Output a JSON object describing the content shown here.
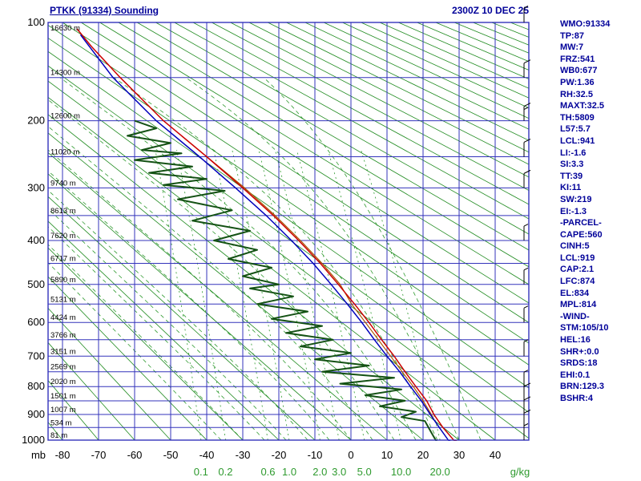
{
  "header": {
    "title": "PTKK (91334) Sounding",
    "datetime": "2300Z 10 DEC 25"
  },
  "stats": [
    "WMO:91334",
    "TP:87",
    "MW:7",
    "FRZ:541",
    "WB0:677",
    "PW:1.36",
    "RH:32.5",
    "MAXT:32.5",
    "TH:5809",
    "L57:5.7",
    "LCL:941",
    "LI:-1.6",
    "SI:3.3",
    "TT:39",
    "KI:11",
    "SW:219",
    "EI:-1.3",
    "-PARCEL-",
    "CAPE:560",
    "CINH:5",
    "LCL:919",
    "CAP:2.1",
    "LFC:874",
    "EL:834",
    "MPL:814",
    "-WIND-",
    "STM:105/10",
    "HEL:16",
    "SHR+:0.0",
    "SRDS:18",
    "EHI:0.1",
    "BRN:129.3",
    "BSHR:4"
  ],
  "axes": {
    "pressure_unit": "mb",
    "pressure_ticks": [
      100,
      200,
      300,
      400,
      500,
      600,
      700,
      800,
      900,
      1000
    ],
    "altitude_labels": [
      {
        "p": 100,
        "label": "16630 m"
      },
      {
        "p": 150,
        "label": "14300 m"
      },
      {
        "p": 200,
        "label": "12600 m"
      },
      {
        "p": 250,
        "label": "11020 m"
      },
      {
        "p": 300,
        "label": "9740 m"
      },
      {
        "p": 350,
        "label": "8613 m"
      },
      {
        "p": 400,
        "label": "7620 m"
      },
      {
        "p": 450,
        "label": "6717 m"
      },
      {
        "p": 500,
        "label": "5890 m"
      },
      {
        "p": 550,
        "label": "5131 m"
      },
      {
        "p": 600,
        "label": "4424 m"
      },
      {
        "p": 650,
        "label": "3766 m"
      },
      {
        "p": 700,
        "label": "3151 m"
      },
      {
        "p": 750,
        "label": "2569 m"
      },
      {
        "p": 800,
        "label": "2020 m"
      },
      {
        "p": 850,
        "label": "1501 m"
      },
      {
        "p": 900,
        "label": "1007 m"
      },
      {
        "p": 950,
        "label": "534 m"
      },
      {
        "p": 1000,
        "label": "81 m"
      }
    ],
    "temp_ticks": [
      -80,
      -70,
      -60,
      -50,
      -40,
      -30,
      -20,
      -10,
      0,
      10,
      20,
      30,
      40
    ],
    "mixing_unit": "g/kg",
    "mixing_labels": [
      {
        "label": "0.1",
        "t": -41.6
      },
      {
        "label": "0.2",
        "t": -34.8
      },
      {
        "label": "0.6",
        "t": -23.0
      },
      {
        "label": "1.0",
        "t": -17.1
      },
      {
        "label": "2.0",
        "t": -8.6
      },
      {
        "label": "3.0",
        "t": -3.3
      },
      {
        "label": "5.0",
        "t": 3.7
      },
      {
        "label": "10.0",
        "t": 13.9
      },
      {
        "label": "20.0",
        "t": 24.7
      }
    ]
  },
  "chart_data": {
    "type": "stuve-sounding",
    "title": "PTKK (91334) Sounding",
    "pressure_range": [
      100,
      1000
    ],
    "temp_range": [
      -80,
      40
    ],
    "grid": {
      "isobar_step": 50,
      "isotherm_step": 10,
      "dry_adiabats_theta": {
        "min": -80,
        "max": 340,
        "step": 10
      },
      "moist_adiabats_thetaw": [
        -36,
        -30,
        -24,
        -18,
        -12,
        -6,
        0,
        6,
        12,
        18,
        24,
        30,
        36
      ],
      "mixing_ratios": [
        0.1,
        0.2,
        0.6,
        1.0,
        2.0,
        3.0,
        5.0,
        10.0,
        20.0
      ]
    },
    "colors": {
      "grid_blue": "#3333bb",
      "adiabat_green": "#1e8a1e",
      "dashed_green": "#2e9a2e",
      "temperature_red": "#cc0000",
      "secondary_blue": "#0000bb",
      "dewpoint_darkgreen": "#145214",
      "parcel_brown": "#aa5500",
      "text_navy": "#000099",
      "axis_black": "#000000"
    },
    "series": [
      {
        "name": "temperature",
        "color": "#cc0000",
        "width": 1.5,
        "points": [
          [
            1009,
            30
          ],
          [
            1000,
            28.5
          ],
          [
            950,
            25.5
          ],
          [
            900,
            23
          ],
          [
            850,
            21
          ],
          [
            800,
            18
          ],
          [
            750,
            15
          ],
          [
            700,
            12
          ],
          [
            650,
            8.5
          ],
          [
            600,
            5
          ],
          [
            550,
            1
          ],
          [
            500,
            -3.5
          ],
          [
            450,
            -8.5
          ],
          [
            400,
            -14.5
          ],
          [
            350,
            -21.5
          ],
          [
            300,
            -30
          ],
          [
            250,
            -40
          ],
          [
            200,
            -52
          ],
          [
            150,
            -64
          ],
          [
            120,
            -72
          ],
          [
            105,
            -76
          ]
        ]
      },
      {
        "name": "secondary",
        "color": "#0000bb",
        "width": 1.5,
        "points": [
          [
            1009,
            28
          ],
          [
            1000,
            27
          ],
          [
            950,
            24.5
          ],
          [
            900,
            22
          ],
          [
            850,
            19.5
          ],
          [
            800,
            16.5
          ],
          [
            750,
            13.5
          ],
          [
            700,
            10
          ],
          [
            650,
            6.5
          ],
          [
            600,
            3
          ],
          [
            550,
            -1
          ],
          [
            500,
            -5.5
          ],
          [
            450,
            -10.5
          ],
          [
            400,
            -16.5
          ],
          [
            350,
            -23.5
          ],
          [
            300,
            -32
          ],
          [
            250,
            -42
          ],
          [
            200,
            -54
          ],
          [
            150,
            -66
          ],
          [
            110,
            -75
          ]
        ]
      },
      {
        "name": "parcel",
        "color": "#aa5500",
        "width": 1.2,
        "points": [
          [
            919,
            23
          ],
          [
            900,
            22.3
          ],
          [
            850,
            20
          ],
          [
            800,
            17.3
          ],
          [
            750,
            14.2
          ],
          [
            700,
            11
          ],
          [
            650,
            7.6
          ],
          [
            600,
            4
          ],
          [
            550,
            0.2
          ],
          [
            500,
            -3
          ],
          [
            450,
            -8
          ],
          [
            400,
            -14
          ],
          [
            350,
            -21
          ],
          [
            300,
            -29.5
          ],
          [
            250,
            -40
          ],
          [
            220,
            -47
          ]
        ]
      },
      {
        "name": "dewpoint",
        "color": "#145214",
        "width": 2,
        "points": [
          [
            1009,
            24
          ],
          [
            1000,
            23.5
          ],
          [
            975,
            22.5
          ],
          [
            950,
            21.5
          ],
          [
            925,
            20.5
          ],
          [
            910,
            14
          ],
          [
            890,
            18
          ],
          [
            870,
            8
          ],
          [
            850,
            15
          ],
          [
            830,
            4
          ],
          [
            810,
            14
          ],
          [
            790,
            -3
          ],
          [
            770,
            12
          ],
          [
            750,
            -8
          ],
          [
            730,
            5
          ],
          [
            710,
            -10
          ],
          [
            690,
            0
          ],
          [
            670,
            -14
          ],
          [
            650,
            -5
          ],
          [
            630,
            -18
          ],
          [
            610,
            -8
          ],
          [
            590,
            -22
          ],
          [
            570,
            -12
          ],
          [
            550,
            -26
          ],
          [
            530,
            -16
          ],
          [
            510,
            -28
          ],
          [
            500,
            -20
          ],
          [
            480,
            -30
          ],
          [
            460,
            -22
          ],
          [
            440,
            -34
          ],
          [
            420,
            -26
          ],
          [
            400,
            -38
          ],
          [
            380,
            -28
          ],
          [
            360,
            -44
          ],
          [
            340,
            -33
          ],
          [
            320,
            -48
          ],
          [
            305,
            -35
          ],
          [
            295,
            -52
          ],
          [
            285,
            -40
          ],
          [
            275,
            -56
          ],
          [
            265,
            -44
          ],
          [
            255,
            -60
          ],
          [
            245,
            -47
          ],
          [
            240,
            -58
          ],
          [
            230,
            -50
          ],
          [
            220,
            -62
          ],
          [
            210,
            -54
          ],
          [
            200,
            -60
          ]
        ]
      }
    ],
    "winds": [
      {
        "p": 1000,
        "spd": 8
      },
      {
        "p": 950,
        "spd": 10
      },
      {
        "p": 900,
        "spd": 10
      },
      {
        "p": 850,
        "spd": 12
      },
      {
        "p": 800,
        "spd": 8
      },
      {
        "p": 700,
        "spd": 5
      },
      {
        "p": 600,
        "spd": 5
      },
      {
        "p": 500,
        "spd": 5
      },
      {
        "p": 400,
        "spd": 8
      },
      {
        "p": 300,
        "spd": 10
      },
      {
        "p": 250,
        "spd": 12
      },
      {
        "p": 200,
        "spd": 15
      },
      {
        "p": 150,
        "spd": 10
      },
      {
        "p": 100,
        "spd": 5
      }
    ]
  }
}
